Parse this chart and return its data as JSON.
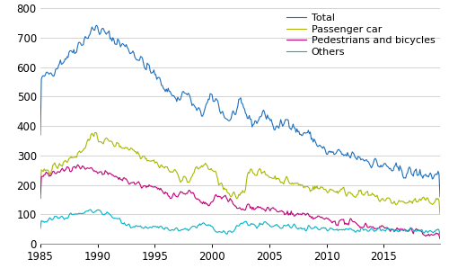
{
  "xlim": [
    1985.0,
    2019.92
  ],
  "ylim": [
    0,
    800
  ],
  "yticks": [
    0,
    100,
    200,
    300,
    400,
    500,
    600,
    700,
    800
  ],
  "xticks": [
    1985,
    1990,
    1995,
    2000,
    2005,
    2010,
    2015
  ],
  "colors": {
    "Total": "#1c6fbe",
    "Passenger car": "#a8b800",
    "Pedestrians and bicycles": "#c2007a",
    "Others": "#00b5c8"
  },
  "background_color": "#ffffff",
  "grid_color": "#cccccc",
  "linewidth": 0.8,
  "figsize": [
    5.0,
    3.08
  ],
  "dpi": 100,
  "tick_fontsize": 8.5,
  "legend_fontsize": 8.0
}
